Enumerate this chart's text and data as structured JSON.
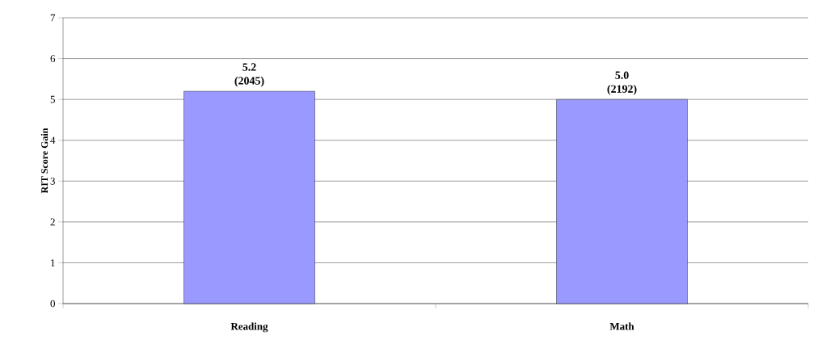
{
  "chart_data": {
    "type": "bar",
    "ylabel": "RIT Score Gain",
    "categories": [
      "Reading",
      "Math"
    ],
    "values": [
      5.2,
      5.0
    ],
    "color": "#9999ff",
    "value_labels": [
      "5.2 (2045)",
      "5.0 (2192)"
    ],
    "ylim": [
      0,
      7
    ],
    "yticks": [
      0,
      1,
      2,
      3,
      4,
      5,
      6,
      7
    ],
    "grid": "y"
  }
}
